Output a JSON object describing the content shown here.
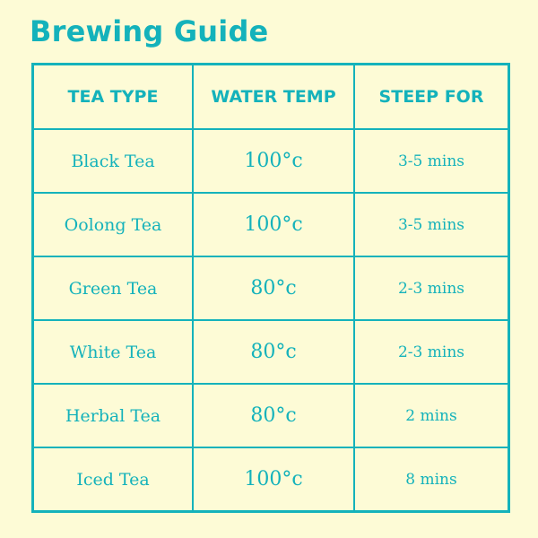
{
  "title": "Brewing Guide",
  "colors": {
    "accent": "#14b2bb",
    "background": "#fdfbd6"
  },
  "table": {
    "headers": [
      "TEA TYPE",
      "WATER TEMP",
      "STEEP FOR"
    ],
    "rows": [
      {
        "type": "Black Tea",
        "temp": "100°c",
        "steep": "3-5 mins"
      },
      {
        "type": "Oolong Tea",
        "temp": "100°c",
        "steep": "3-5 mins"
      },
      {
        "type": "Green Tea",
        "temp": "80°c",
        "steep": "2-3 mins"
      },
      {
        "type": "White Tea",
        "temp": "80°c",
        "steep": "2-3 mins"
      },
      {
        "type": "Herbal Tea",
        "temp": "80°c",
        "steep": "2 mins"
      },
      {
        "type": "Iced Tea",
        "temp": "100°c",
        "steep": "8 mins"
      }
    ]
  }
}
